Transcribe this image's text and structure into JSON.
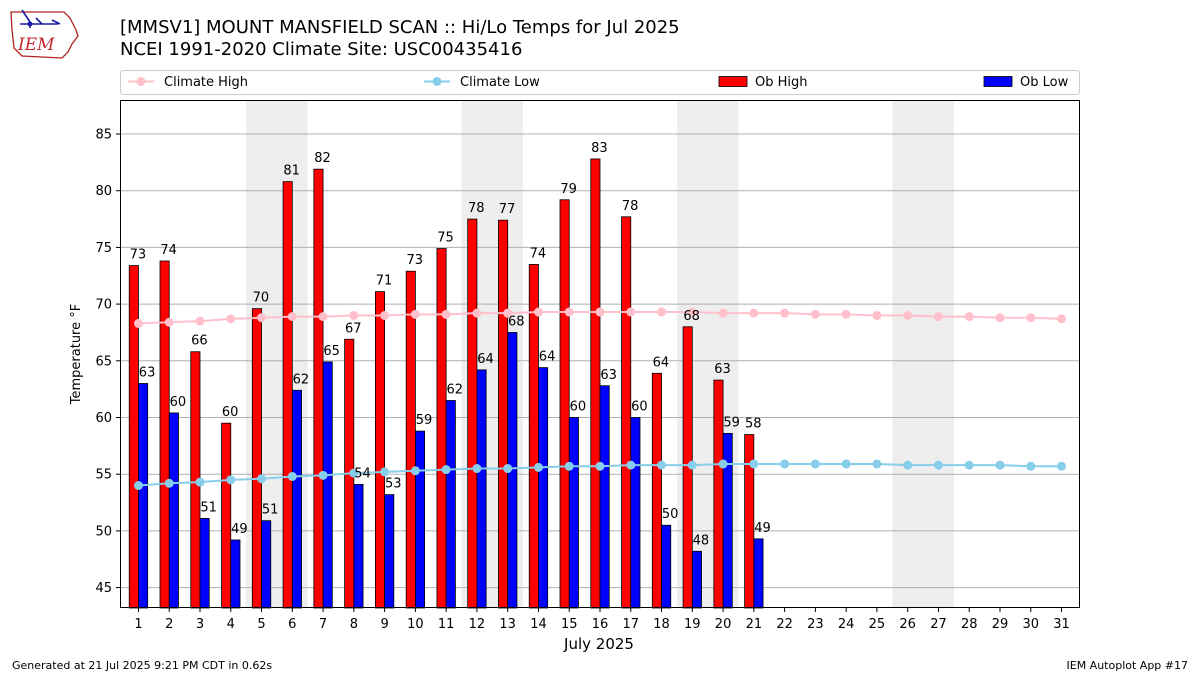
{
  "header": {
    "title_line1": "[MMSV1] MOUNT MANSFIELD SCAN :: Hi/Lo Temps for Jul 2025",
    "title_line2": "NCEI 1991-2020 Climate Site: USC00435416",
    "logo_text": "IEM"
  },
  "footer": {
    "generated": "Generated at 21 Jul 2025 9:21 PM CDT in 0.62s",
    "app": "IEM Autoplot App #17"
  },
  "colors": {
    "ob_high": "#ff0000",
    "ob_low": "#0000ff",
    "climate_high": "#ffc0cb",
    "climate_low": "#87ceeb",
    "weekend_shade": "#eeeeee",
    "grid": "#b0b0b0"
  },
  "chart_data": {
    "type": "bar",
    "xlabel": "July 2025",
    "ylabel": "Temperature °F",
    "ylim": [
      43.2,
      88
    ],
    "yticks": [
      45,
      50,
      55,
      60,
      65,
      70,
      75,
      80,
      85
    ],
    "grid": "horizontal",
    "legend_placement": "top",
    "categories": [
      "1",
      "2",
      "3",
      "4",
      "5",
      "6",
      "7",
      "8",
      "9",
      "10",
      "11",
      "12",
      "13",
      "14",
      "15",
      "16",
      "17",
      "18",
      "19",
      "20",
      "21",
      "22",
      "23",
      "24",
      "25",
      "26",
      "27",
      "28",
      "29",
      "30",
      "31"
    ],
    "weekend_spans": [
      [
        5,
        6
      ],
      [
        12,
        13
      ],
      [
        19,
        20
      ],
      [
        26,
        27
      ]
    ],
    "series": [
      {
        "name": "Ob High",
        "kind": "bar",
        "values": [
          73.4,
          73.8,
          65.8,
          59.5,
          69.6,
          80.8,
          81.9,
          66.9,
          71.1,
          72.9,
          74.9,
          77.5,
          77.4,
          73.5,
          79.2,
          82.8,
          77.7,
          63.9,
          68.0,
          63.3,
          58.5,
          null,
          null,
          null,
          null,
          null,
          null,
          null,
          null,
          null,
          null
        ],
        "labels": [
          "73",
          "74",
          "66",
          "60",
          "70",
          "81",
          "82",
          "67",
          "71",
          "73",
          "75",
          "78",
          "77",
          "74",
          "79",
          "83",
          "78",
          "64",
          "68",
          "63",
          "58",
          "",
          "",
          "",
          "",
          "",
          "",
          "",
          "",
          "",
          ""
        ]
      },
      {
        "name": "Ob Low",
        "kind": "bar",
        "values": [
          63.0,
          60.4,
          51.1,
          49.2,
          50.9,
          62.4,
          64.9,
          54.1,
          53.2,
          58.8,
          61.5,
          64.2,
          67.5,
          64.4,
          60.0,
          62.8,
          60.0,
          50.5,
          48.2,
          58.6,
          49.3,
          null,
          null,
          null,
          null,
          null,
          null,
          null,
          null,
          null,
          null
        ],
        "labels": [
          "63",
          "60",
          "51",
          "49",
          "51",
          "62",
          "65",
          "54",
          "53",
          "59",
          "62",
          "64",
          "68",
          "64",
          "60",
          "63",
          "60",
          "50",
          "48",
          "59",
          "49",
          "",
          "",
          "",
          "",
          "",
          "",
          "",
          "",
          "",
          ""
        ]
      },
      {
        "name": "Climate High",
        "kind": "line",
        "values": [
          68.3,
          68.4,
          68.5,
          68.7,
          68.8,
          68.9,
          68.9,
          69.0,
          69.0,
          69.1,
          69.1,
          69.2,
          69.2,
          69.3,
          69.3,
          69.3,
          69.3,
          69.3,
          69.3,
          69.2,
          69.2,
          69.2,
          69.1,
          69.1,
          69.0,
          69.0,
          68.9,
          68.9,
          68.8,
          68.8,
          68.7
        ]
      },
      {
        "name": "Climate Low",
        "kind": "line",
        "values": [
          54.0,
          54.2,
          54.3,
          54.5,
          54.6,
          54.8,
          54.9,
          55.1,
          55.2,
          55.3,
          55.4,
          55.5,
          55.5,
          55.6,
          55.7,
          55.7,
          55.8,
          55.8,
          55.8,
          55.9,
          55.9,
          55.9,
          55.9,
          55.9,
          55.9,
          55.8,
          55.8,
          55.8,
          55.8,
          55.7,
          55.7
        ]
      }
    ],
    "legend": [
      "Climate High",
      "Climate Low",
      "Ob High",
      "Ob Low"
    ]
  }
}
